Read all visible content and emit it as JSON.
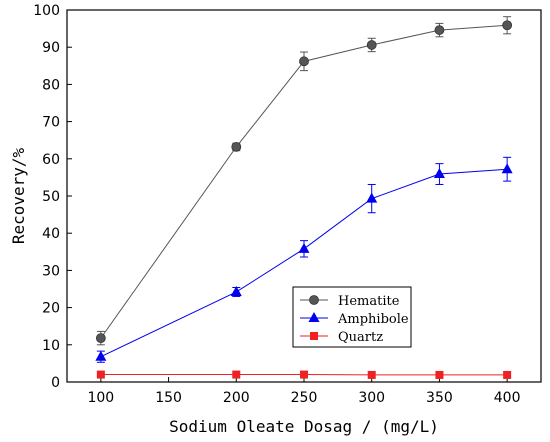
{
  "chart_data": {
    "type": "line",
    "xlabel": "Sodium Oleate Dosag / (mg/L)",
    "ylabel": "Recovery/%",
    "xlim": [
      75,
      425
    ],
    "ylim": [
      0,
      100
    ],
    "x_ticks": [
      100,
      150,
      200,
      250,
      300,
      350,
      400
    ],
    "y_ticks": [
      0,
      10,
      20,
      30,
      40,
      50,
      60,
      70,
      80,
      90,
      100
    ],
    "legend_position": "lower-center",
    "grid": false,
    "x": [
      100,
      200,
      250,
      300,
      350,
      400
    ],
    "series": [
      {
        "name": "Hematite",
        "values": [
          11.8,
          63.2,
          86.2,
          90.6,
          94.6,
          95.9
        ],
        "errors": [
          1.8,
          1.0,
          2.5,
          1.8,
          1.8,
          2.3
        ],
        "color": "#555555",
        "marker": "circle"
      },
      {
        "name": "Amphibole",
        "values": [
          6.8,
          24.2,
          35.8,
          49.3,
          55.9,
          57.2
        ],
        "errors": [
          1.5,
          1.2,
          2.2,
          3.8,
          2.8,
          3.2
        ],
        "color": "#0000ee",
        "marker": "triangle"
      },
      {
        "name": "Quartz",
        "values": [
          2.0,
          2.0,
          2.0,
          1.9,
          1.9,
          1.9
        ],
        "errors": [
          0,
          0,
          0,
          0,
          0,
          0
        ],
        "color": "#ee2222",
        "marker": "square"
      }
    ]
  }
}
